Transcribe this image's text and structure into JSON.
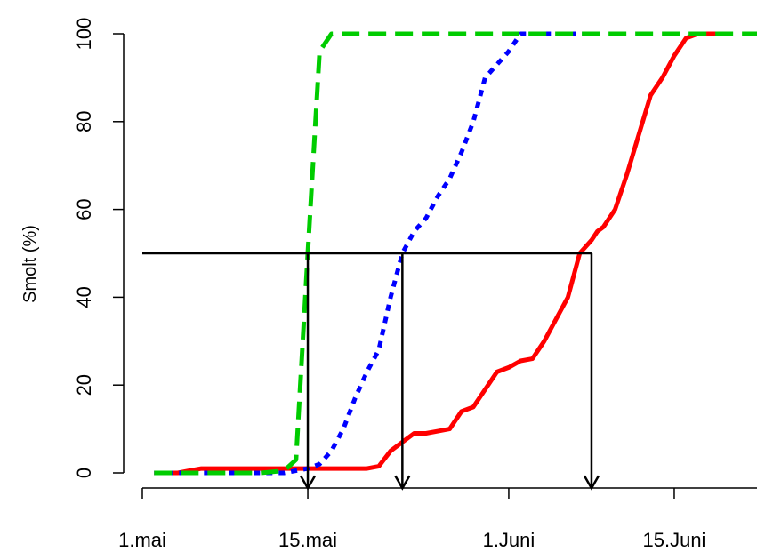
{
  "chart_data": {
    "type": "line",
    "title": "",
    "xlabel": "",
    "ylabel": "Smolt (%)",
    "x_unit": "day-of-year",
    "xlim": [
      121,
      173
    ],
    "ylim": [
      0,
      100
    ],
    "x_ticks": [
      {
        "value": 121,
        "label": "1.mai"
      },
      {
        "value": 135,
        "label": "15.mai"
      },
      {
        "value": 152,
        "label": "1.Juni"
      },
      {
        "value": 166,
        "label": "15.Juni"
      }
    ],
    "y_ticks": [
      {
        "value": 0,
        "label": "0"
      },
      {
        "value": 20,
        "label": "20"
      },
      {
        "value": 40,
        "label": "40"
      },
      {
        "value": 60,
        "label": "60"
      },
      {
        "value": 80,
        "label": "80"
      },
      {
        "value": 100,
        "label": "100"
      }
    ],
    "series": [
      {
        "color": "#ff0000",
        "dash": "solid",
        "x": [
          122,
          124,
          125,
          126,
          128,
          130,
          132,
          134,
          136,
          138,
          140,
          141,
          142,
          143,
          144,
          145,
          146,
          147,
          148,
          149,
          150,
          151,
          152,
          153,
          154,
          155,
          156,
          157,
          158,
          159,
          159.5,
          160,
          161,
          162,
          163,
          164,
          165,
          166,
          167,
          168,
          169,
          170
        ],
        "y": [
          0,
          0,
          0.5,
          1,
          1,
          1,
          1,
          1,
          1,
          1,
          1,
          1.5,
          5,
          7,
          9,
          9,
          9.5,
          10,
          14,
          15,
          19,
          23,
          24,
          25.5,
          26,
          30,
          35,
          40,
          50,
          53,
          55,
          56,
          60,
          68,
          77,
          86,
          90,
          95,
          99,
          100,
          100,
          100
        ]
      },
      {
        "color": "#0000ff",
        "dash": "dotted",
        "x": [
          122,
          125,
          128,
          131,
          133,
          134,
          135,
          136,
          137,
          138,
          139,
          140,
          141,
          142,
          143,
          144,
          145,
          146,
          147,
          148,
          149,
          150,
          151,
          152,
          153,
          154,
          155,
          156,
          157,
          158,
          159
        ],
        "y": [
          0,
          0,
          0,
          0,
          0,
          0.5,
          1,
          2,
          5,
          10,
          17,
          23,
          28,
          40,
          50,
          55,
          58,
          63,
          67,
          73,
          80,
          90,
          93,
          96,
          100,
          100,
          100,
          100,
          100,
          100,
          100
        ]
      },
      {
        "color": "#00cc00",
        "dash": "dashed",
        "x": [
          122,
          125,
          128,
          131,
          133,
          134,
          135,
          136,
          137,
          138,
          140,
          145,
          150,
          155,
          160,
          165,
          170,
          173
        ],
        "y": [
          0,
          0,
          0,
          0,
          0.5,
          3,
          50,
          96,
          100,
          100,
          100,
          100,
          100,
          100,
          100,
          100,
          100,
          100
        ]
      }
    ],
    "reference_line": {
      "y": 50,
      "x_from": 121,
      "x_to": 159
    },
    "arrows": [
      {
        "x": 135,
        "from_y": 50,
        "to_y": -3.5
      },
      {
        "x": 143,
        "from_y": 50,
        "to_y": -3.5
      },
      {
        "x": 159,
        "from_y": 50,
        "to_y": -3.5
      }
    ]
  }
}
